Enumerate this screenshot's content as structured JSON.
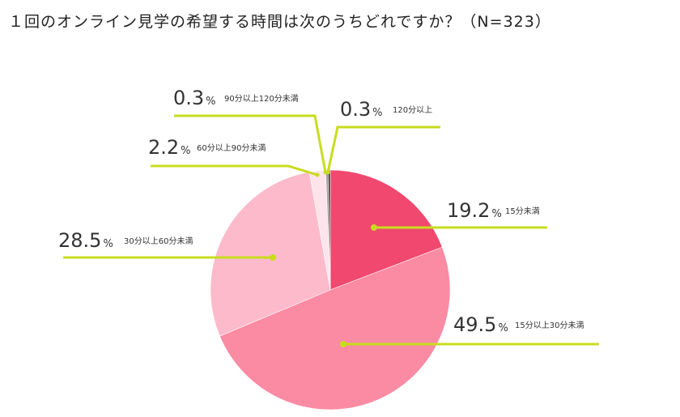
{
  "title": "１回のオンライン見学の希望する時間は次のうちどれですか？（N=323）",
  "chart_data": {
    "type": "pie",
    "title": "１回のオンライン見学の希望する時間は次のうちどれですか？（N=323）",
    "pct_unit": "%",
    "leader_color": "#c8dc1e",
    "slices": [
      {
        "label": "15分未満",
        "value": 19.2,
        "value_text": "19.2",
        "color": "#f0486e"
      },
      {
        "label": "15分以上30分未満",
        "value": 49.5,
        "value_text": "49.5",
        "color": "#fb8aa3"
      },
      {
        "label": "30分以上60分未満",
        "value": 28.5,
        "value_text": "28.5",
        "color": "#fcbacb"
      },
      {
        "label": "60分以上90分未満",
        "value": 2.2,
        "value_text": "2.2",
        "color": "#fde4ea"
      },
      {
        "label": "90分以上120分未満",
        "value": 0.3,
        "value_text": "0.3",
        "color": "#9a9a9a"
      },
      {
        "label": "120分以上",
        "value": 0.3,
        "value_text": "0.3",
        "color": "#3c3c3c"
      }
    ]
  }
}
